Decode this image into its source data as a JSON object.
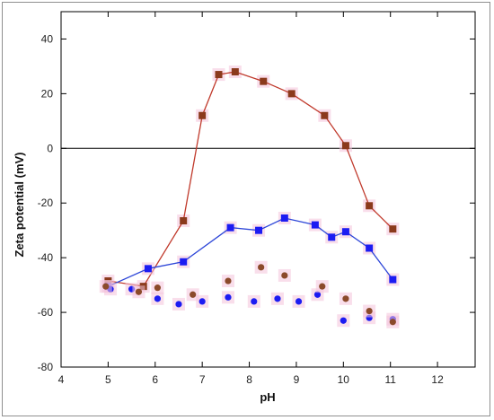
{
  "chart_data": {
    "type": "scatter",
    "xlabel": "pH",
    "ylabel": "Zeta potential (mV)",
    "xlim": [
      4,
      12.8
    ],
    "ylim": [
      -80,
      50
    ],
    "xticks": [
      4,
      5,
      6,
      7,
      8,
      9,
      10,
      11,
      12
    ],
    "yticks": [
      -80,
      -60,
      -40,
      -20,
      0,
      20,
      40
    ],
    "zero_line": true,
    "grid": false,
    "legend": "none",
    "series": [
      {
        "marker": "square",
        "connected": true,
        "color": "#8b3a1c",
        "line_color": "#c0392b",
        "halo_color": "#f4c2da",
        "points": [
          [
            5.0,
            -48.5
          ],
          [
            5.75,
            -50.5
          ],
          [
            6.6,
            -26.5
          ],
          [
            7.0,
            12
          ],
          [
            7.35,
            27
          ],
          [
            7.7,
            28
          ],
          [
            8.3,
            24.5
          ],
          [
            8.9,
            20
          ],
          [
            9.6,
            12
          ],
          [
            10.05,
            1
          ],
          [
            10.55,
            -21
          ],
          [
            11.05,
            -29.5
          ]
        ]
      },
      {
        "marker": "square",
        "connected": true,
        "color": "#1c1cf2",
        "line_color": "#2d46d8",
        "halo_color": "#f4c2da",
        "points": [
          [
            5.0,
            -50.5
          ],
          [
            5.85,
            -44
          ],
          [
            6.6,
            -41.5
          ],
          [
            7.6,
            -29
          ],
          [
            8.2,
            -30
          ],
          [
            8.75,
            -25.5
          ],
          [
            9.4,
            -28
          ],
          [
            9.75,
            -32.5
          ],
          [
            10.05,
            -30.5
          ],
          [
            10.55,
            -36.5
          ],
          [
            11.05,
            -48
          ]
        ]
      },
      {
        "marker": "circle",
        "connected": false,
        "color": "#1c1cf2",
        "halo_color": "#f4c2da",
        "points": [
          [
            5.05,
            -51.5
          ],
          [
            5.5,
            -51.5
          ],
          [
            6.05,
            -55
          ],
          [
            6.5,
            -57
          ],
          [
            7.0,
            -56
          ],
          [
            7.55,
            -54.5
          ],
          [
            8.1,
            -56
          ],
          [
            8.6,
            -55
          ],
          [
            9.05,
            -56
          ],
          [
            9.45,
            -53.5
          ],
          [
            10.0,
            -63
          ],
          [
            10.55,
            -62
          ],
          [
            11.05,
            -62.5
          ]
        ]
      },
      {
        "marker": "circle",
        "connected": false,
        "color": "#8b4a2a",
        "halo_color": "#f4c2da",
        "points": [
          [
            4.95,
            -50.5
          ],
          [
            5.65,
            -52.5
          ],
          [
            6.05,
            -51
          ],
          [
            6.8,
            -53.5
          ],
          [
            7.55,
            -48.5
          ],
          [
            8.25,
            -43.5
          ],
          [
            8.75,
            -46.5
          ],
          [
            9.55,
            -50.5
          ],
          [
            10.05,
            -55
          ],
          [
            10.55,
            -59.5
          ],
          [
            11.05,
            -63.5
          ]
        ]
      }
    ]
  }
}
